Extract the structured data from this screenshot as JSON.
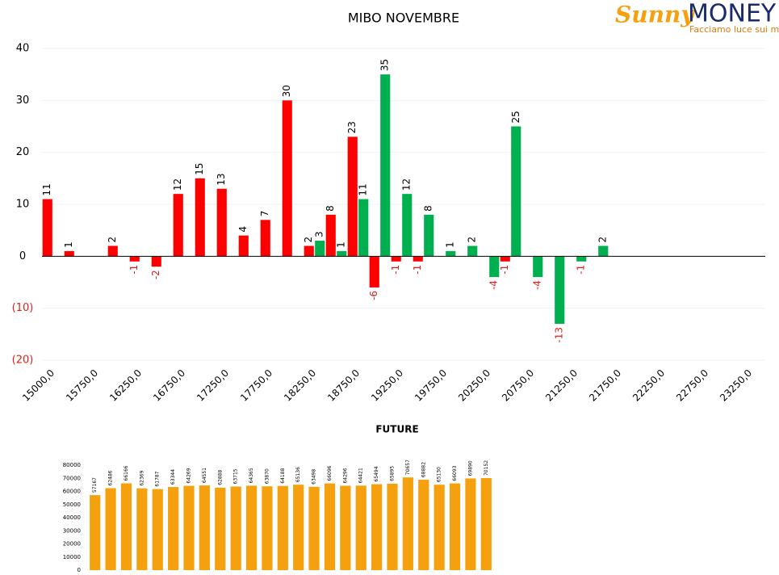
{
  "logo": {
    "brand": "Sunny",
    "name": "MONEY",
    "tagline": "Facciamo luce sui mercati"
  },
  "chart_data": [
    {
      "type": "bar",
      "title": "MIBO NOVEMBRE",
      "categories": [
        "15000,0",
        null,
        "15750,0",
        null,
        "16250,0",
        null,
        "16750,0",
        null,
        "17250,0",
        null,
        "17750,0",
        null,
        "18250,0",
        null,
        "18750,0",
        null,
        "19250,0",
        null,
        "19750,0",
        null,
        "20250,0",
        null,
        "20750,0",
        null,
        "21250,0",
        null,
        "21750,0",
        null,
        "22250,0",
        null,
        "22750,0",
        null,
        "23250,0"
      ],
      "series": [
        {
          "color": "#ff0000",
          "values": [
            11,
            1,
            null,
            2,
            -1,
            -2,
            12,
            15,
            13,
            4,
            7,
            30,
            2,
            8,
            23,
            -6,
            -1,
            -1,
            null,
            null,
            null,
            -1,
            null,
            null,
            null,
            null,
            null,
            null,
            null,
            null,
            null,
            null,
            null
          ]
        },
        {
          "color": "#00b050",
          "values": [
            null,
            null,
            null,
            null,
            null,
            null,
            null,
            null,
            null,
            null,
            null,
            null,
            3,
            1,
            11,
            35,
            12,
            8,
            1,
            2,
            -4,
            25,
            -4,
            -13,
            -1,
            2,
            null,
            null,
            null,
            null,
            null,
            null,
            null
          ]
        }
      ],
      "ylim": [
        -20,
        40
      ],
      "yticks": [
        {
          "value": -20,
          "label": "(20)"
        },
        {
          "value": -10,
          "label": "(10)"
        },
        0,
        10,
        20,
        30,
        40
      ],
      "grid": true,
      "negative_color": "#e0201b"
    },
    {
      "type": "bar",
      "title": "FUTURE",
      "color": "#f5a00e",
      "values": [
        57167,
        62486,
        66166,
        62369,
        61787,
        63344,
        64269,
        64551,
        62888,
        63715,
        64365,
        63870,
        64188,
        65136,
        63498,
        66096,
        64296,
        64421,
        65494,
        65895,
        70657,
        68882,
        65130,
        66093,
        69890,
        70152
      ],
      "ylim": [
        0,
        80000
      ],
      "yticks": [
        0,
        10000,
        20000,
        30000,
        40000,
        50000,
        60000,
        70000,
        80000
      ],
      "grid": false
    }
  ]
}
